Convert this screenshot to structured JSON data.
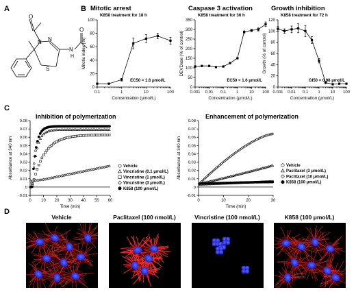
{
  "panels": {
    "A": {
      "label": "A"
    },
    "B": {
      "label": "B"
    },
    "C": {
      "label": "C"
    },
    "D": {
      "label": "D"
    }
  },
  "structure": {
    "atoms": [
      "O",
      "N",
      "N",
      "S",
      "N",
      "O"
    ],
    "h_label": "H"
  },
  "chart_data": [
    {
      "type": "line",
      "title": "Mitotic arrest",
      "subtitle": "K858 treatment for 18 h",
      "xlabel": "Concentration (μmol/L)",
      "ylabel": "Mitotic index (%)",
      "xscale": "log",
      "xlim": [
        0.1,
        100
      ],
      "ylim": [
        0,
        100
      ],
      "xticks": [
        "0.1",
        "1",
        "10",
        "100"
      ],
      "yticks": [
        "0",
        "20",
        "40",
        "60",
        "80",
        "100"
      ],
      "annotation": "EC50 = 1.6 μmol/L",
      "x": [
        0.1,
        0.3,
        1,
        3,
        10,
        30,
        100
      ],
      "y": [
        5,
        5,
        11,
        65,
        72,
        76,
        69
      ],
      "err": [
        1,
        1,
        2,
        8,
        6,
        4,
        5
      ]
    },
    {
      "type": "line",
      "title": "Caspase 3 activation",
      "subtitle": "K858 treatment for 36 h",
      "xlabel": "Concentration (μmol/L)",
      "ylabel": "DEVDase (% of control)",
      "xscale": "log",
      "xlim": [
        0.001,
        100
      ],
      "ylim": [
        0,
        350
      ],
      "xticks": [
        "0.001",
        "0.01",
        "0.1",
        "1",
        "10",
        "100"
      ],
      "yticks": [
        "0",
        "50",
        "100",
        "150",
        "200",
        "250",
        "300",
        "350"
      ],
      "annotation": "EC50 = 1.6 μmol/L",
      "x": [
        0.001,
        0.003,
        0.01,
        0.03,
        0.1,
        0.3,
        1,
        3,
        10,
        30,
        100
      ],
      "y": [
        107,
        110,
        110,
        104,
        107,
        125,
        150,
        287,
        295,
        300,
        327
      ],
      "err": [
        2,
        2,
        2,
        2,
        2,
        3,
        4,
        6,
        6,
        8,
        12
      ]
    },
    {
      "type": "line",
      "title": "Growth inhibition",
      "subtitle": "K858 treatment for 72 h",
      "xlabel": "Concentration (μmol/L)",
      "ylabel": "Growth (% of control)",
      "xscale": "log",
      "xlim": [
        0.001,
        100
      ],
      "ylim": [
        0,
        120
      ],
      "xticks": [
        "0.001",
        "0.01",
        "0.1",
        "1",
        "10",
        "100"
      ],
      "yticks": [
        "0",
        "20",
        "40",
        "60",
        "80",
        "100",
        "120"
      ],
      "annotation": "GI50 = 0.98 μmol/L",
      "x": [
        0.001,
        0.003,
        0.01,
        0.03,
        0.1,
        0.3,
        1,
        3,
        10,
        30,
        100
      ],
      "y": [
        104,
        100,
        103,
        105,
        100,
        84,
        47,
        8,
        5,
        6,
        6
      ],
      "err": [
        4,
        4,
        6,
        8,
        10,
        6,
        4,
        2,
        1,
        1,
        1
      ]
    },
    {
      "type": "scatter",
      "title": "Inhibition of polymerization",
      "xlabel": "Time (min)",
      "ylabel": "Absorbance at 340 nm",
      "xlim": [
        0,
        60
      ],
      "ylim": [
        -0.01,
        0.08
      ],
      "xticks": [
        "0",
        "10",
        "20",
        "30",
        "40",
        "50",
        "60"
      ],
      "yticks": [
        "-0.01",
        "0",
        "0.01",
        "0.02",
        "0.03",
        "0.04",
        "0.05",
        "0.06",
        "0.07",
        "0.08"
      ],
      "series": [
        {
          "name": "Vehicle",
          "marker": "circle-open",
          "plateau": 0.073,
          "k": 0.35,
          "lag": 1.5
        },
        {
          "name": "Vincristine (0.1 μmol/L)",
          "marker": "triangle-open",
          "plateau": 0.069,
          "k": 0.3,
          "lag": 1.5
        },
        {
          "name": "Vincristine (1 μmol/L)",
          "marker": "square-open",
          "plateau": 0.063,
          "k": 0.11,
          "lag": 1.5
        },
        {
          "name": "Vincristine (3 μmol/L)",
          "marker": "diamond-open",
          "plateau": 0.054,
          "k": 0.035,
          "lag": 1.5
        },
        {
          "name": "K858 (100 μmol/L)",
          "marker": "circle-filled",
          "plateau": 0.073,
          "k": 0.35,
          "lag": 1.5
        }
      ],
      "vincristine_high": {
        "name": "Vincristine (3 μmol/L)",
        "start": 0.009,
        "slope": 0.00033
      }
    },
    {
      "type": "scatter",
      "title": "Enhancement of polymerization",
      "xlabel": "Time (min)",
      "ylabel": "Absorbance at 340 nm",
      "xlim": [
        0,
        30
      ],
      "ylim": [
        -0.01,
        0.08
      ],
      "xticks": [
        "0",
        "10",
        "20",
        "30"
      ],
      "yticks": [
        "-0.01",
        "0",
        "0.01",
        "0.02",
        "0.03",
        "0.04",
        "0.05",
        "0.06",
        "0.07",
        "0.08"
      ],
      "series": [
        {
          "name": "Vehicle",
          "marker": "circle-open",
          "start": 0.003,
          "end": 0.007
        },
        {
          "name": "Paclitaxel (3 μmol/L)",
          "marker": "triangle-open",
          "start": 0.004,
          "end": 0.026
        },
        {
          "name": "Paclitaxel (10 μmol/L)",
          "marker": "diamond-open",
          "start": 0.003,
          "end": 0.064
        },
        {
          "name": "K858 (100 μmol/L)",
          "marker": "circle-filled",
          "start": 0.004,
          "end": 0.006
        }
      ]
    }
  ],
  "micrographs": [
    {
      "label": "Vehicle",
      "kind": "vehicle"
    },
    {
      "label": "Paclitaxel (100 nmol/L)",
      "kind": "paclitaxel"
    },
    {
      "label": "Vincristine (100 nmol/L)",
      "kind": "vincristine"
    },
    {
      "label": "K858 (100 μmol/L)",
      "kind": "k858"
    }
  ]
}
